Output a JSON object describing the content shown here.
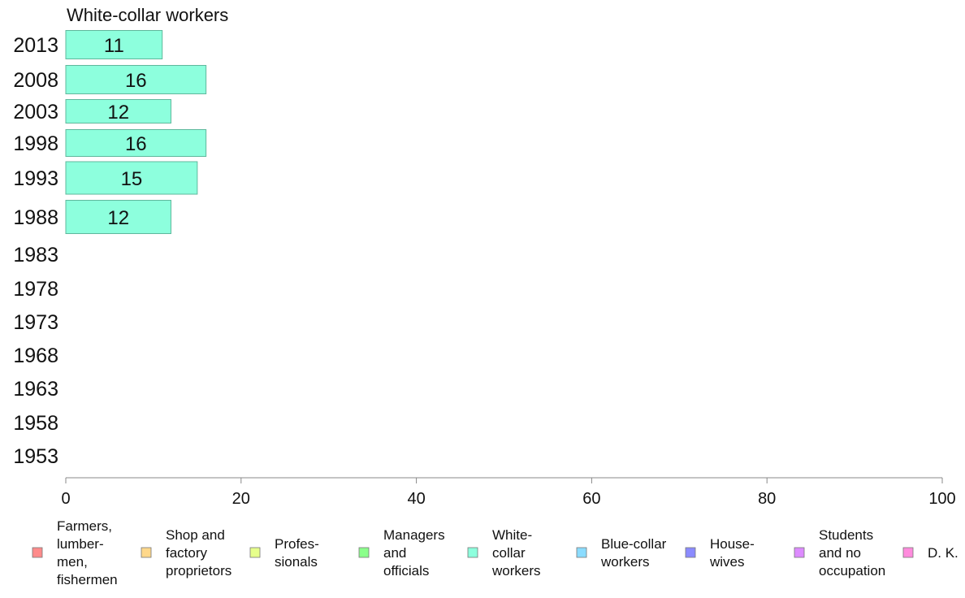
{
  "chart_data": {
    "type": "bar",
    "orientation": "horizontal",
    "title": "White-collar workers",
    "categories": [
      "2013",
      "2008",
      "2003",
      "1998",
      "1993",
      "1988",
      "1983",
      "1978",
      "1973",
      "1968",
      "1963",
      "1958",
      "1953"
    ],
    "values": [
      11,
      16,
      12,
      16,
      15,
      12,
      null,
      null,
      null,
      null,
      null,
      null,
      null
    ],
    "data_labels": [
      "11",
      "16",
      "12",
      "16",
      "15",
      "12",
      "",
      "",
      "",
      "",
      "",
      "",
      ""
    ],
    "xlim": [
      0,
      100
    ],
    "xticks": [
      0,
      20,
      40,
      60,
      80,
      100
    ],
    "xlabel": "",
    "ylabel": "",
    "bar_color": "#8dffdd",
    "bar_edge_color": "#5fb89c",
    "grid": false,
    "legend_position": "bottom",
    "legend": [
      {
        "lines": [
          "Farmers,",
          "lumber-",
          "men,",
          "fishermen"
        ],
        "color": "#ff8b8b"
      },
      {
        "lines": [
          "Shop and",
          "factory",
          "proprietors"
        ],
        "color": "#ffd88b"
      },
      {
        "lines": [
          "Profes-",
          "sionals"
        ],
        "color": "#e6ff8b"
      },
      {
        "lines": [
          "Managers",
          "and",
          "officials"
        ],
        "color": "#8bff8b"
      },
      {
        "lines": [
          "White-",
          "collar",
          "workers"
        ],
        "color": "#8dffdd"
      },
      {
        "lines": [
          "Blue-collar",
          "workers"
        ],
        "color": "#8bdcff"
      },
      {
        "lines": [
          "House-",
          "wives"
        ],
        "color": "#8b8bff"
      },
      {
        "lines": [
          "Students",
          "and no",
          "occupation"
        ],
        "color": "#dd8bff"
      },
      {
        "lines": [
          "D. K."
        ],
        "color": "#ff8bdd"
      }
    ]
  }
}
